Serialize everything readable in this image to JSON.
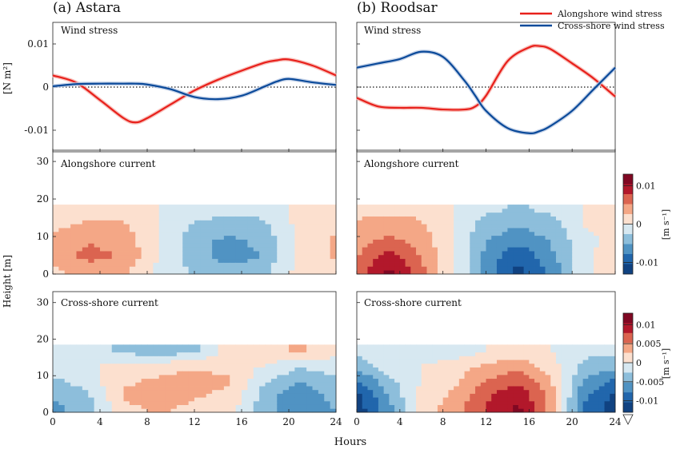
{
  "figure": {
    "panel_a_title": "(a) Astara",
    "panel_b_title": "(b) Roodsar",
    "x_label": "Hours",
    "y_label_top": "[N m²]",
    "y_label_bottom": "Height [m]",
    "colorbar_unit": "[m s⁻¹]",
    "row_labels": [
      "Wind stress",
      "Alongshore current",
      "Cross-shore current"
    ]
  },
  "colors": {
    "alongshore": "#e8201b",
    "crossshore": "#0b4a9a",
    "band_along": "#f6b3ad",
    "band_cross": "#b9c9e4"
  },
  "chart_data": [
    {
      "type": "line",
      "panel": "a",
      "title": "Wind stress",
      "x": [
        0,
        2,
        4,
        6,
        7,
        8,
        10,
        12,
        14,
        16,
        18,
        19,
        20,
        22,
        24
      ],
      "series": [
        {
          "name": "Alongshore wind stress",
          "values": [
            0.0027,
            0.001,
            -0.003,
            -0.0072,
            -0.0082,
            -0.0072,
            -0.004,
            -0.0008,
            0.0017,
            0.0038,
            0.0057,
            0.0062,
            0.0064,
            0.005,
            0.0027
          ]
        },
        {
          "name": "Cross-shore wind stress",
          "values": [
            0.0002,
            0.0007,
            0.0008,
            0.0008,
            0.0008,
            0.0006,
            -0.0005,
            -0.0023,
            -0.0028,
            -0.002,
            0.0002,
            0.0013,
            0.0019,
            0.0011,
            0.0005
          ]
        }
      ],
      "ylim": [
        -0.015,
        0.015
      ],
      "yticks": [
        -0.01,
        0,
        0.01
      ],
      "xlim": [
        0,
        24
      ]
    },
    {
      "type": "line",
      "panel": "b",
      "title": "Wind stress",
      "x": [
        0,
        2,
        4,
        6,
        8,
        10,
        11,
        12,
        14,
        16,
        17,
        18,
        20,
        22,
        24
      ],
      "series": [
        {
          "name": "Alongshore wind stress",
          "values": [
            -0.0025,
            -0.0045,
            -0.0048,
            -0.0048,
            -0.0052,
            -0.0052,
            -0.0045,
            -0.002,
            0.006,
            0.0092,
            0.0095,
            0.0088,
            0.0055,
            0.002,
            -0.0022
          ]
        },
        {
          "name": "Cross-shore wind stress",
          "values": [
            0.0045,
            0.0055,
            0.0065,
            0.0082,
            0.007,
            0.0015,
            -0.002,
            -0.0055,
            -0.0095,
            -0.0107,
            -0.0102,
            -0.009,
            -0.0055,
            -0.0005,
            0.0045
          ]
        }
      ],
      "ylim": [
        -0.015,
        0.015
      ],
      "yticks": [
        -0.01,
        0,
        0.01
      ],
      "xlim": [
        0,
        24
      ]
    },
    {
      "type": "heatmap",
      "panel": "a",
      "title": "Alongshore current",
      "x": [
        0,
        3,
        6,
        9,
        12,
        15,
        18,
        21,
        24
      ],
      "y": [
        1,
        5,
        9,
        13,
        17
      ],
      "values": [
        [
          0.002,
          0.004,
          0.003,
          -0.001,
          -0.003,
          -0.004,
          -0.003,
          0.001,
          0.002
        ],
        [
          0.004,
          0.006,
          0.005,
          0.0,
          -0.004,
          -0.007,
          -0.005,
          0.001,
          0.003
        ],
        [
          0.003,
          0.005,
          0.004,
          0.0,
          -0.004,
          -0.006,
          -0.004,
          0.001,
          0.003
        ],
        [
          0.002,
          0.003,
          0.003,
          0.0,
          -0.003,
          -0.004,
          -0.003,
          0.001,
          0.002
        ],
        [
          0.001,
          0.002,
          0.002,
          0.0,
          -0.001,
          -0.002,
          -0.002,
          0.001,
          0.001
        ]
      ],
      "ylim": [
        0,
        33
      ],
      "yticks": [
        0,
        10,
        20,
        30
      ]
    },
    {
      "type": "heatmap",
      "panel": "b",
      "title": "Alongshore current",
      "x": [
        0,
        3,
        6,
        9,
        12,
        15,
        18,
        21,
        24
      ],
      "y": [
        1,
        5,
        9,
        13,
        17
      ],
      "values": [
        [
          0.006,
          0.011,
          0.006,
          0.0,
          -0.006,
          -0.011,
          -0.007,
          -0.001,
          0.002
        ],
        [
          0.005,
          0.009,
          0.005,
          0.0,
          -0.006,
          -0.01,
          -0.006,
          -0.001,
          0.002
        ],
        [
          0.004,
          0.006,
          0.004,
          0.0,
          -0.005,
          -0.007,
          -0.005,
          -0.001,
          0.001
        ],
        [
          0.003,
          0.004,
          0.003,
          0.0,
          -0.004,
          -0.005,
          -0.004,
          0.0,
          0.001
        ],
        [
          0.002,
          0.002,
          0.002,
          0.0,
          -0.002,
          -0.003,
          -0.002,
          0.0,
          0.001
        ]
      ],
      "ylim": [
        0,
        33
      ],
      "yticks": [
        0,
        10,
        20,
        30
      ]
    },
    {
      "type": "heatmap",
      "panel": "a",
      "title": "Cross-shore current",
      "x": [
        0,
        3,
        6,
        9,
        12,
        15,
        18,
        21,
        24
      ],
      "y": [
        1,
        5,
        9,
        13,
        17
      ],
      "values": [
        [
          -0.006,
          -0.004,
          0.002,
          0.003,
          0.002,
          0.001,
          -0.004,
          -0.008,
          -0.005
        ],
        [
          -0.005,
          -0.003,
          0.003,
          0.004,
          0.003,
          0.002,
          -0.004,
          -0.007,
          -0.004
        ],
        [
          -0.003,
          -0.001,
          0.002,
          0.003,
          0.004,
          0.003,
          -0.002,
          -0.005,
          -0.003
        ],
        [
          -0.001,
          0.0,
          0.0,
          0.001,
          0.002,
          0.001,
          0.0,
          -0.002,
          -0.001
        ],
        [
          -0.001,
          -0.002,
          -0.003,
          -0.005,
          -0.003,
          0.001,
          0.002,
          0.003,
          0.001
        ]
      ],
      "ylim": [
        0,
        33
      ],
      "yticks": [
        0,
        10,
        20,
        30
      ]
    },
    {
      "type": "heatmap",
      "panel": "b",
      "title": "Cross-shore current",
      "x": [
        0,
        3,
        6,
        9,
        12,
        15,
        18,
        21,
        24
      ],
      "y": [
        1,
        5,
        9,
        13,
        17
      ],
      "values": [
        [
          -0.012,
          -0.006,
          0.001,
          0.004,
          0.008,
          0.011,
          0.004,
          -0.008,
          -0.012
        ],
        [
          -0.011,
          -0.005,
          0.001,
          0.003,
          0.007,
          0.01,
          0.004,
          -0.007,
          -0.011
        ],
        [
          -0.008,
          -0.003,
          0.0,
          0.002,
          0.005,
          0.007,
          0.003,
          -0.005,
          -0.008
        ],
        [
          -0.004,
          -0.001,
          0.0,
          0.001,
          0.003,
          0.004,
          0.001,
          -0.003,
          -0.004
        ],
        [
          -0.002,
          -0.001,
          -0.002,
          -0.002,
          0.0,
          0.001,
          0.0,
          -0.002,
          -0.002
        ]
      ],
      "ylim": [
        0,
        33
      ],
      "yticks": [
        0,
        10,
        20,
        30
      ]
    }
  ],
  "axes": {
    "x_ticks": [
      "0",
      "4",
      "8",
      "12",
      "16",
      "20",
      "24"
    ],
    "wind_y_ticks": [
      "0.01",
      "0",
      "-0.01"
    ],
    "height_y_ticks": [
      "30",
      "20",
      "10",
      "0"
    ]
  },
  "colorbars": [
    {
      "row": "alongshore",
      "tick_labels": [
        "0.01",
        "0",
        "-0.01"
      ],
      "tick_values": [
        0.01,
        0,
        -0.01
      ],
      "range": [
        -0.013,
        0.013
      ],
      "levels": 10
    },
    {
      "row": "crossshore",
      "tick_labels": [
        "0.01",
        "0.005",
        "0",
        "-0.005",
        "-0.01"
      ],
      "tick_values": [
        0.01,
        0.005,
        0,
        -0.005,
        -0.01
      ],
      "range": [
        -0.013,
        0.013
      ],
      "levels": 10
    }
  ]
}
